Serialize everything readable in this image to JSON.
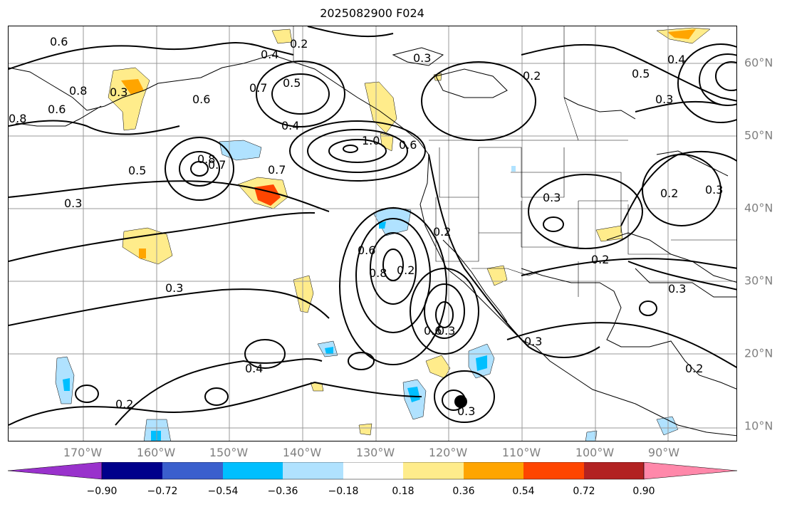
{
  "title": "2025082900 F024",
  "map": {
    "lon_labels": [
      "170°W",
      "160°W",
      "150°W",
      "140°W",
      "130°W",
      "120°W",
      "110°W",
      "100°W",
      "90°W"
    ],
    "lat_labels": [
      "60°N",
      "50°N",
      "40°N",
      "30°N",
      "20°N",
      "10°N"
    ],
    "contour_labels": [
      "0.6",
      "0.2",
      "0.4",
      "0.3",
      "0.2",
      "0.4",
      "0.5",
      "0.3",
      "0.8",
      "0.6",
      "0.7",
      "0.5",
      "0.6",
      "0.3",
      "0.8",
      "0.4",
      "1.0",
      "0.6",
      "0.8",
      "0.7",
      "0.7",
      "0.5",
      "0.3",
      "0.3",
      "0.2",
      "0.6",
      "0.8",
      "0.2",
      "0.6",
      "0.3",
      "0.3",
      "0.3",
      "0.3",
      "0.4",
      "0.2",
      "0.3",
      "0.2",
      "0.2",
      "0.3",
      "0.2"
    ]
  },
  "colorbar": {
    "tick_labels": [
      "−0.90",
      "−0.72",
      "−0.54",
      "−0.36",
      "−0.18",
      "0.18",
      "0.36",
      "0.54",
      "0.72",
      "0.90"
    ],
    "colors": [
      "#9932cc",
      "#00008b",
      "#3a5fcd",
      "#00bfff",
      "#b0e2ff",
      "#ffffff",
      "#ffec8b",
      "#ffa500",
      "#ff4500",
      "#b22222",
      "#ff88aa"
    ]
  },
  "marker": {
    "label": "storm center",
    "color": "#000000"
  }
}
